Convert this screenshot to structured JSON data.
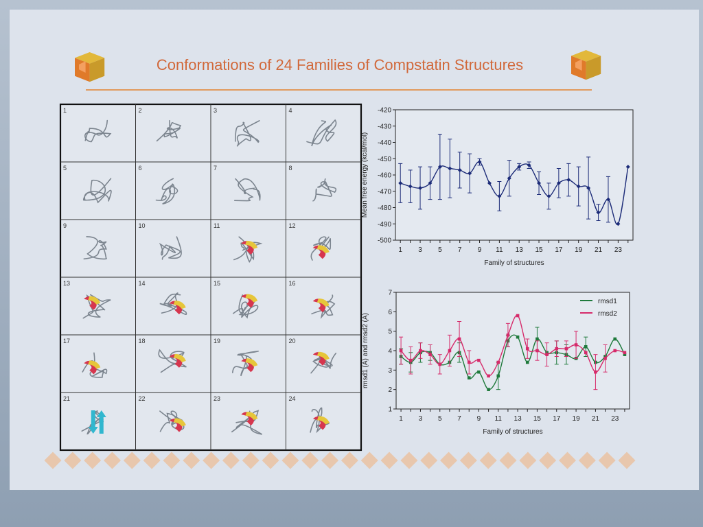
{
  "poster": {
    "title": "Conformations of 24 Families of Compstatin Structures",
    "colors": {
      "paper": "#dde3ec",
      "title": "#d1683a",
      "rule": "#e19a5d",
      "diamond": "#e8c7ad",
      "logo_orange": "#e07a2a",
      "logo_yellow": "#e2b83a",
      "grid_border": "#111111",
      "strand": "#7c858f",
      "helix_red": "#d6364e",
      "helix_yellow": "#e6c63a",
      "sheet_cyan": "#31b7cf"
    },
    "grid": {
      "cells": [
        {
          "num": "1",
          "motif": "coil"
        },
        {
          "num": "2",
          "motif": "coil"
        },
        {
          "num": "3",
          "motif": "coil"
        },
        {
          "num": "4",
          "motif": "coil"
        },
        {
          "num": "5",
          "motif": "coil"
        },
        {
          "num": "6",
          "motif": "coil"
        },
        {
          "num": "7",
          "motif": "coil"
        },
        {
          "num": "8",
          "motif": "coil"
        },
        {
          "num": "9",
          "motif": "coil"
        },
        {
          "num": "10",
          "motif": "coil"
        },
        {
          "num": "11",
          "motif": "helix"
        },
        {
          "num": "12",
          "motif": "helix"
        },
        {
          "num": "13",
          "motif": "helix"
        },
        {
          "num": "14",
          "motif": "helix"
        },
        {
          "num": "15",
          "motif": "helix"
        },
        {
          "num": "16",
          "motif": "helix"
        },
        {
          "num": "17",
          "motif": "helix"
        },
        {
          "num": "18",
          "motif": "helix"
        },
        {
          "num": "19",
          "motif": "helix"
        },
        {
          "num": "20",
          "motif": "helix"
        },
        {
          "num": "21",
          "motif": "sheet"
        },
        {
          "num": "22",
          "motif": "helix"
        },
        {
          "num": "23",
          "motif": "helix"
        },
        {
          "num": "24",
          "motif": "helix"
        }
      ]
    }
  },
  "chart_data": [
    {
      "type": "line",
      "title": "",
      "xlabel": "Family of structures",
      "ylabel": "Mean free energy (kcal/mol)",
      "x": [
        1,
        2,
        3,
        4,
        5,
        6,
        7,
        8,
        9,
        10,
        11,
        12,
        13,
        14,
        15,
        16,
        17,
        18,
        19,
        20,
        21,
        22,
        23,
        24
      ],
      "xticks": [
        "1",
        "3",
        "5",
        "7",
        "9",
        "11",
        "13",
        "15",
        "17",
        "19",
        "21",
        "23"
      ],
      "xlim": [
        0.5,
        24.5
      ],
      "ylim": [
        -500,
        -420
      ],
      "yticks": [
        "-420",
        "-430",
        "-440",
        "-450",
        "-460",
        "-470",
        "-480",
        "-490",
        "-500"
      ],
      "grid": false,
      "series": [
        {
          "values": [
            -465,
            -467,
            -468,
            -465,
            -455,
            -456,
            -457,
            -459,
            -452,
            -465,
            -473,
            -462,
            -455,
            -454,
            -465,
            -473,
            -465,
            -463,
            -467,
            -468,
            -483,
            -475,
            -490,
            -455
          ],
          "errors": [
            12,
            10,
            13,
            10,
            20,
            18,
            11,
            12,
            2,
            0,
            9,
            11,
            2,
            2,
            7,
            8,
            9,
            10,
            12,
            19,
            5,
            14,
            0,
            0
          ],
          "color": "#1c2b78"
        }
      ]
    },
    {
      "type": "line",
      "title": "",
      "xlabel": "Family of structures",
      "ylabel": "rmsd1 (A) and rmsd2 (A)",
      "x": [
        1,
        2,
        3,
        4,
        5,
        6,
        7,
        8,
        9,
        10,
        11,
        12,
        13,
        14,
        15,
        16,
        17,
        18,
        19,
        20,
        21,
        22,
        23,
        24
      ],
      "xticks": [
        "1",
        "3",
        "5",
        "7",
        "9",
        "11",
        "13",
        "15",
        "17",
        "19",
        "21",
        "23"
      ],
      "xlim": [
        0.5,
        24.5
      ],
      "ylim": [
        1,
        7
      ],
      "yticks": [
        "1",
        "2",
        "3",
        "4",
        "5",
        "6",
        "7"
      ],
      "grid": false,
      "legend": "top-right",
      "series": [
        {
          "name": "rmsd1",
          "values": [
            3.7,
            3.4,
            3.9,
            3.9,
            3.3,
            3.4,
            3.9,
            2.6,
            2.9,
            2.0,
            2.7,
            4.5,
            4.7,
            3.4,
            4.6,
            3.9,
            3.9,
            3.8,
            3.6,
            4.2,
            3.4,
            3.7,
            4.6,
            3.8
          ],
          "errors": [
            0.4,
            0.5,
            0.5,
            0.4,
            0,
            0,
            0.5,
            0,
            0,
            0,
            0.7,
            0.3,
            0,
            0,
            0.6,
            0,
            0.6,
            0.5,
            0,
            0.5,
            0,
            0,
            0,
            0
          ],
          "color": "#1f7a3c"
        },
        {
          "name": "rmsd2",
          "values": [
            4.0,
            3.5,
            4.0,
            3.8,
            3.3,
            4.0,
            4.6,
            3.4,
            3.5,
            2.7,
            3.4,
            4.8,
            5.8,
            4.1,
            4.0,
            3.8,
            4.1,
            4.1,
            4.3,
            3.9,
            2.9,
            3.6,
            4.0,
            3.9
          ],
          "errors": [
            0.7,
            0.7,
            0.4,
            0.5,
            0.5,
            0.8,
            0.9,
            0.6,
            0,
            0,
            0,
            0.6,
            0,
            0.5,
            0.5,
            0.6,
            0.4,
            0.4,
            0.7,
            0,
            0.9,
            0.7,
            0,
            0
          ],
          "color": "#d62a6a"
        }
      ]
    }
  ]
}
